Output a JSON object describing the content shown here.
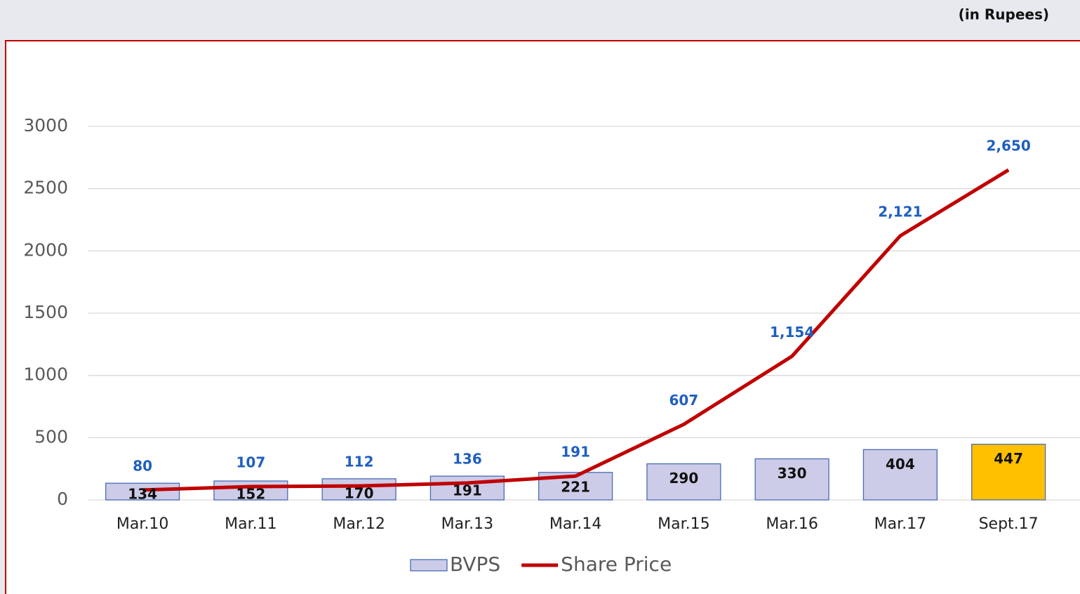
{
  "chart_data": {
    "type": "bar_line",
    "subtitle": "(in Rupees)",
    "categories": [
      "Mar.10",
      "Mar.11",
      "Mar.12",
      "Mar.13",
      "Mar.14",
      "Mar.15",
      "Mar.16",
      "Mar.17",
      "Sept.17"
    ],
    "series": [
      {
        "name": "BVPS",
        "type": "bar",
        "color": "#cccce8",
        "edge_color": "#4a6bb5",
        "colors": [
          "#cccce8",
          "#cccce8",
          "#cccce8",
          "#cccce8",
          "#cccce8",
          "#cccce8",
          "#cccce8",
          "#cccce8",
          "#ffc000"
        ],
        "values": [
          134,
          152,
          170,
          191,
          221,
          290,
          330,
          404,
          447
        ]
      },
      {
        "name": "Share Price",
        "type": "line",
        "color": "#c00000",
        "values": [
          80,
          107,
          112,
          136,
          191,
          607,
          1154,
          2121,
          2650
        ],
        "value_labels": [
          "80",
          "107",
          "112",
          "136",
          "191",
          "607",
          "1,154",
          "2,121",
          "2,650"
        ]
      }
    ],
    "ylim": [
      0,
      3000
    ],
    "yticks": [
      0,
      500,
      1000,
      1500,
      2000,
      2500,
      3000
    ],
    "grid": true,
    "legend": "bottom"
  }
}
